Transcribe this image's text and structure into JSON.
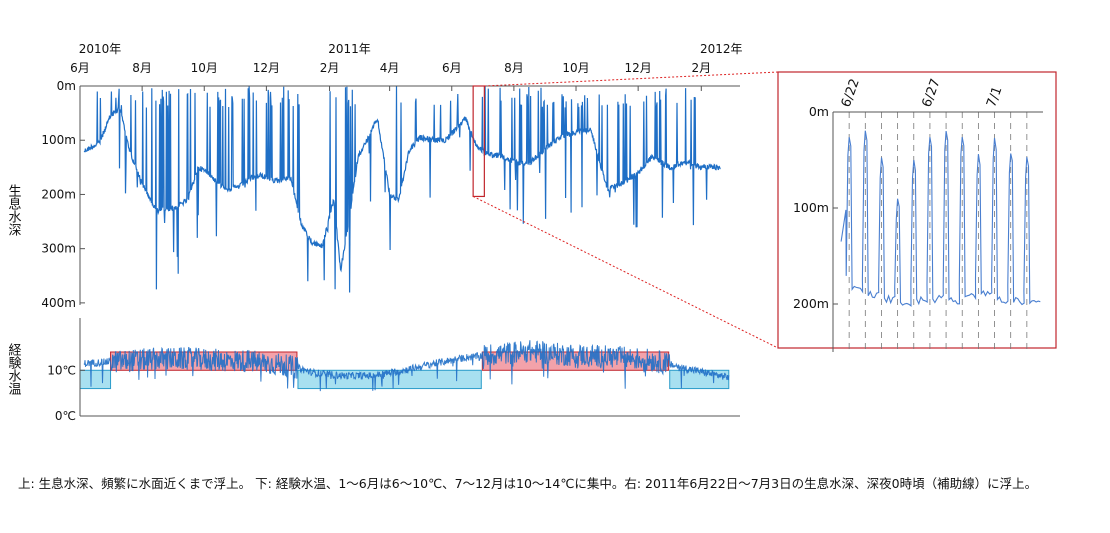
{
  "chart_data": [
    {
      "type": "line",
      "ylabel": "生息水深",
      "x_tick_labels": [
        {
          "x": "2010-06-01",
          "label": "6月",
          "year": "2010年"
        },
        {
          "x": "2010-08-01",
          "label": "8月"
        },
        {
          "x": "2010-10-01",
          "label": "10月"
        },
        {
          "x": "2010-12-01",
          "label": "12月"
        },
        {
          "x": "2011-02-01",
          "label": "2月",
          "year": "2011年"
        },
        {
          "x": "2011-04-01",
          "label": "4月"
        },
        {
          "x": "2011-06-01",
          "label": "6月"
        },
        {
          "x": "2011-08-01",
          "label": "8月"
        },
        {
          "x": "2011-10-01",
          "label": "10月"
        },
        {
          "x": "2011-12-01",
          "label": "12月"
        },
        {
          "x": "2012-02-01",
          "label": "2月",
          "year": "2012年"
        }
      ],
      "xlim": [
        "2010-06-01",
        "2012-03-10"
      ],
      "y_ticks": [
        {
          "value": 0,
          "label": "0m"
        },
        {
          "value": 100,
          "label": "100m"
        },
        {
          "value": 200,
          "label": "200m"
        },
        {
          "value": 300,
          "label": "300m"
        },
        {
          "value": 400,
          "label": "400m"
        }
      ],
      "ylim": [
        0,
        450
      ],
      "y_inverted": true,
      "series_color": "#1f6fc6",
      "baseline_depth": [
        [
          "2010-06-05",
          120
        ],
        [
          "2010-06-20",
          105
        ],
        [
          "2010-07-01",
          55
        ],
        [
          "2010-07-10",
          40
        ],
        [
          "2010-07-20",
          120
        ],
        [
          "2010-08-01",
          180
        ],
        [
          "2010-08-15",
          230
        ],
        [
          "2010-09-01",
          225
        ],
        [
          "2010-09-15",
          210
        ],
        [
          "2010-09-25",
          150
        ],
        [
          "2010-10-05",
          160
        ],
        [
          "2010-10-15",
          180
        ],
        [
          "2010-10-25",
          190
        ],
        [
          "2010-11-05",
          185
        ],
        [
          "2010-11-15",
          170
        ],
        [
          "2010-11-25",
          165
        ],
        [
          "2010-12-10",
          175
        ],
        [
          "2010-12-25",
          170
        ],
        [
          "2011-01-05",
          260
        ],
        [
          "2011-01-15",
          290
        ],
        [
          "2011-01-25",
          295
        ],
        [
          "2011-02-05",
          210
        ],
        [
          "2011-02-12",
          340
        ],
        [
          "2011-02-20",
          250
        ],
        [
          "2011-03-01",
          130
        ],
        [
          "2011-03-10",
          100
        ],
        [
          "2011-03-20",
          60
        ],
        [
          "2011-04-01",
          200
        ],
        [
          "2011-04-10",
          210
        ],
        [
          "2011-04-20",
          120
        ],
        [
          "2011-05-01",
          95
        ],
        [
          "2011-05-15",
          100
        ],
        [
          "2011-05-25",
          100
        ],
        [
          "2011-06-05",
          80
        ],
        [
          "2011-06-15",
          60
        ],
        [
          "2011-06-25",
          110
        ],
        [
          "2011-07-05",
          125
        ],
        [
          "2011-07-20",
          130
        ],
        [
          "2011-08-01",
          140
        ],
        [
          "2011-08-15",
          145
        ],
        [
          "2011-09-01",
          115
        ],
        [
          "2011-09-15",
          95
        ],
        [
          "2011-10-01",
          85
        ],
        [
          "2011-10-15",
          80
        ],
        [
          "2011-11-01",
          190
        ],
        [
          "2011-11-15",
          180
        ],
        [
          "2011-12-01",
          160
        ],
        [
          "2011-12-15",
          130
        ],
        [
          "2012-01-01",
          150
        ],
        [
          "2012-01-15",
          140
        ],
        [
          "2012-02-01",
          150
        ],
        [
          "2012-02-20",
          150
        ]
      ],
      "highlight_period": [
        "2011-06-22",
        "2011-07-03"
      ]
    },
    {
      "type": "line",
      "ylabel": "経験水温",
      "y_ticks": [
        {
          "value": 0,
          "label": "0℃"
        },
        {
          "value": 10,
          "label": "10℃"
        }
      ],
      "ylim": [
        0,
        21
      ],
      "series_color": "#1f6fc6",
      "bands": [
        {
          "start": "2010-06-01",
          "end": "2010-07-01",
          "min": 6,
          "max": 10,
          "color": "#a8e0f0"
        },
        {
          "start": "2010-07-01",
          "end": "2010-12-31",
          "min": 10,
          "max": 14,
          "color": "#f3a2aa"
        },
        {
          "start": "2011-01-01",
          "end": "2011-06-30",
          "min": 6,
          "max": 10,
          "color": "#a8e0f0"
        },
        {
          "start": "2011-07-01",
          "end": "2011-12-31",
          "min": 10,
          "max": 14,
          "color": "#f3a2aa"
        },
        {
          "start": "2012-01-01",
          "end": "2012-02-28",
          "min": 6,
          "max": 10,
          "color": "#a8e0f0"
        }
      ],
      "baseline_temp": [
        [
          "2010-06-05",
          11.5
        ],
        [
          "2010-06-25",
          11.8
        ],
        [
          "2010-07-15",
          12
        ],
        [
          "2010-08-15",
          12.5
        ],
        [
          "2010-09-15",
          12.5
        ],
        [
          "2010-10-15",
          12.2
        ],
        [
          "2010-11-15",
          12
        ],
        [
          "2010-12-15",
          11.2
        ],
        [
          "2011-01-01",
          10.5
        ],
        [
          "2011-01-15",
          9.5
        ],
        [
          "2011-02-15",
          8.8
        ],
        [
          "2011-03-15",
          8.8
        ],
        [
          "2011-04-15",
          10
        ],
        [
          "2011-05-15",
          11.5
        ],
        [
          "2011-06-15",
          12.8
        ],
        [
          "2011-07-15",
          13.5
        ],
        [
          "2011-08-15",
          14.2
        ],
        [
          "2011-09-15",
          13.5
        ],
        [
          "2011-10-15",
          13.2
        ],
        [
          "2011-11-15",
          12.8
        ],
        [
          "2011-12-15",
          12.2
        ],
        [
          "2012-01-15",
          10.5
        ],
        [
          "2012-02-15",
          9
        ],
        [
          "2012-02-28",
          8.5
        ]
      ]
    },
    {
      "type": "line",
      "x_tick_labels": [
        {
          "x": "2011-06-22",
          "label": "6/22"
        },
        {
          "x": "2011-06-27",
          "label": "6/27"
        },
        {
          "x": "2011-07-01",
          "label": "7/1"
        }
      ],
      "xlim": [
        "2011-06-21",
        "2011-07-04"
      ],
      "midnight_guides": [
        "2011-06-22",
        "2011-06-23",
        "2011-06-24",
        "2011-06-25",
        "2011-06-26",
        "2011-06-27",
        "2011-06-28",
        "2011-06-29",
        "2011-06-30",
        "2011-07-01",
        "2011-07-02",
        "2011-07-03"
      ],
      "y_ticks": [
        {
          "value": 0,
          "label": "0m"
        },
        {
          "value": 100,
          "label": "100m"
        },
        {
          "value": 200,
          "label": "200m"
        }
      ],
      "ylim": [
        0,
        250
      ],
      "y_inverted": true,
      "series_color": "#4a7fd0",
      "daily_rise_min_depth": [
        25,
        20,
        48,
        90,
        50,
        25,
        20,
        25,
        45,
        28,
        42,
        48
      ],
      "daytime_depth": [
        185,
        190,
        195,
        198,
        196,
        195,
        197,
        193,
        188,
        196,
        197,
        200
      ]
    }
  ],
  "caption": "上: 生息水深、頻繁に水面近くまで浮上。 下: 経験水温、1～6月は6～10℃、7～12月は10～14℃に集中。右: 2011年6月22日～7月3日の生息水深、深夜0時頃（補助線）に浮上。"
}
